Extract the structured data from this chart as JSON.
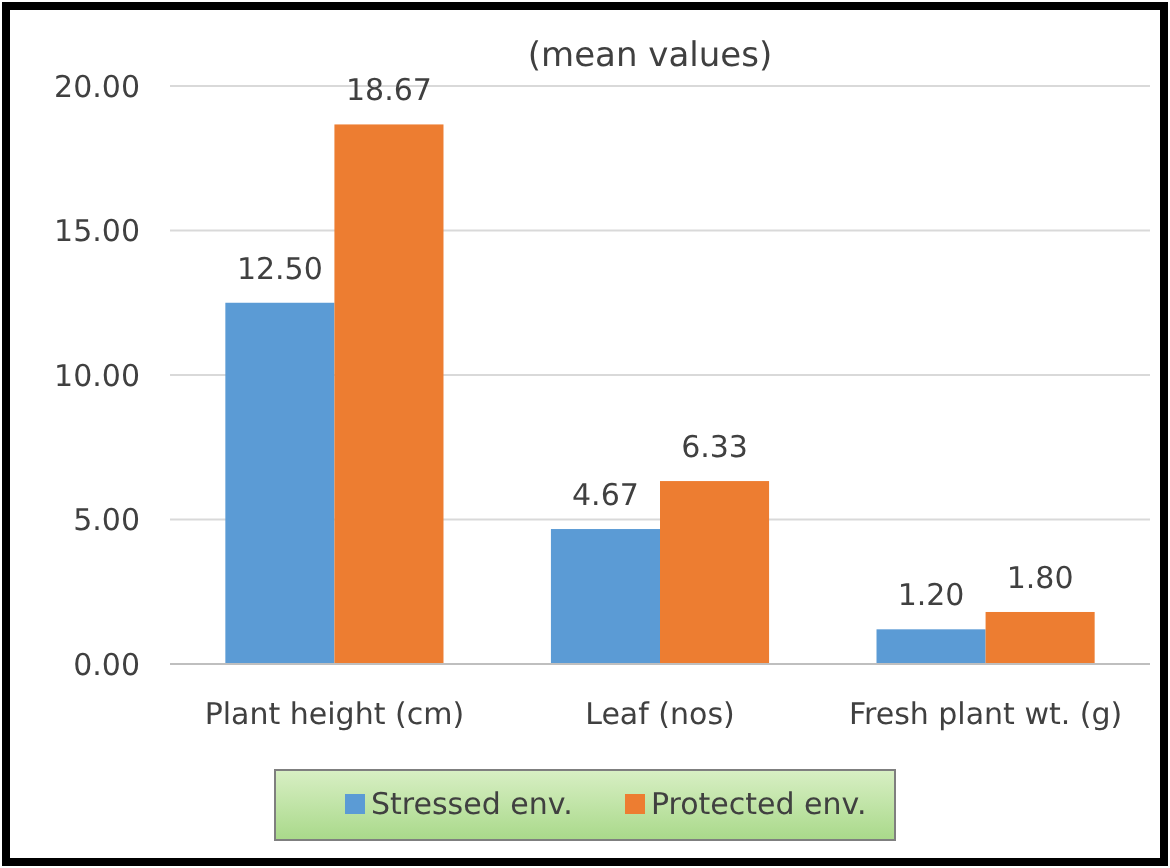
{
  "chart_data": {
    "type": "bar",
    "title": "(mean values)",
    "categories": [
      "Plant height (cm)",
      "Leaf (nos)",
      "Fresh plant wt. (g)"
    ],
    "series": [
      {
        "name": "Stressed env.",
        "color": "#5b9bd5",
        "values": [
          12.5,
          4.67,
          1.2
        ],
        "value_labels": [
          "12.50",
          "4.67",
          "1.20"
        ]
      },
      {
        "name": "Protected env.",
        "color": "#ed7d31",
        "values": [
          18.67,
          6.33,
          1.8
        ],
        "value_labels": [
          "18.67",
          "6.33",
          "1.80"
        ]
      }
    ],
    "ylim": [
      0,
      20
    ],
    "yticks": [
      {
        "value": 0,
        "label": "0.00"
      },
      {
        "value": 5,
        "label": "5.00"
      },
      {
        "value": 10,
        "label": "10.00"
      },
      {
        "value": 15,
        "label": "15.00"
      },
      {
        "value": 20,
        "label": "20.00"
      }
    ],
    "grid": "y",
    "legend": "bottom"
  }
}
